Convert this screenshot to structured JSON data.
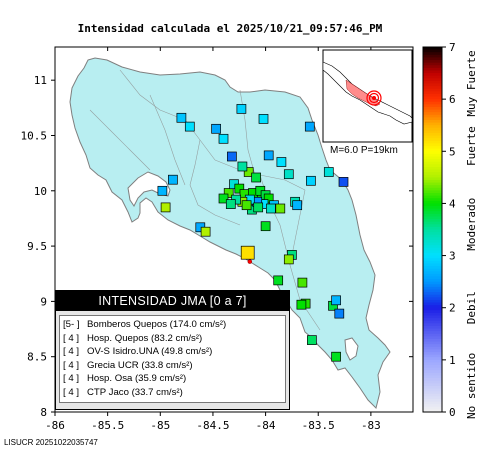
{
  "title": "Intensidad calculada el 2025/10/21_09:57:46_PM",
  "axes": {
    "x_ticks": [
      "-86",
      "-85.5",
      "-85",
      "-84.5",
      "-84",
      "-83.5",
      "-83"
    ],
    "y_ticks": [
      "11",
      "10.5",
      "10",
      "9.5",
      "9",
      "8.5",
      "8"
    ],
    "xlim": [
      -86,
      -82.6
    ],
    "ylim": [
      8,
      11.3
    ]
  },
  "inset": {
    "magnitude_label": "M=6.0 P=19km"
  },
  "colorbar": {
    "ticks": [
      "0",
      "1",
      "2",
      "3",
      "4",
      "5",
      "6",
      "7"
    ],
    "categories": [
      "No sentido",
      "Debil",
      "Moderado",
      "Fuerte",
      "Muy Fuerte"
    ],
    "colors": {
      "0": "#f2f2f2",
      "1": "#9ba6ff",
      "2": "#1a1ee6",
      "3": "#00e0ff",
      "4": "#00e000",
      "5": "#ffff00",
      "6": "#ff4000",
      "7": "#000000"
    }
  },
  "legend": {
    "heading": "INTENSIDAD JMA [0 a 7]",
    "items": [
      {
        "level": "[5- ]",
        "station": "Bomberos Quepos (174.0 cm/s²)"
      },
      {
        "level": "[ 4 ]",
        "station": "Hosp. Quepos (83.2 cm/s²)"
      },
      {
        "level": "[ 4 ]",
        "station": "OV-S Isidro.UNA (49.8 cm/s²)"
      },
      {
        "level": "[ 4 ]",
        "station": "Grecia UCR (33.8 cm/s²)"
      },
      {
        "level": "[ 4 ]",
        "station": "Hosp. Osa (35.9 cm/s²)"
      },
      {
        "level": "[ 4 ]",
        "station": "CTP Jaco (33.7 cm/s²)"
      }
    ]
  },
  "footer": "LISUCR 20251022035747",
  "chart_data": {
    "type": "scatter",
    "title": "Intensidad calculada el 2025/10/21_09:57:46_PM",
    "xlim": [
      -86,
      -82.6
    ],
    "ylim": [
      8,
      11.3
    ],
    "epicenter": {
      "lon": -84.15,
      "lat": 9.36
    },
    "stations": [
      {
        "lon": -84.17,
        "lat": 9.44,
        "intensity": 5.2
      },
      {
        "lon": -84.13,
        "lat": 9.83,
        "intensity": 3.6
      },
      {
        "lon": -84.04,
        "lat": 9.93,
        "intensity": 4.0
      },
      {
        "lon": -84.35,
        "lat": 9.98,
        "intensity": 4.2
      },
      {
        "lon": -84.3,
        "lat": 10.06,
        "intensity": 3.2
      },
      {
        "lon": -84.25,
        "lat": 10.02,
        "intensity": 4.0
      },
      {
        "lon": -84.2,
        "lat": 9.97,
        "intensity": 4.1
      },
      {
        "lon": -84.12,
        "lat": 9.98,
        "intensity": 4.0
      },
      {
        "lon": -84.05,
        "lat": 10.0,
        "intensity": 3.9
      },
      {
        "lon": -84.0,
        "lat": 9.96,
        "intensity": 3.8
      },
      {
        "lon": -83.97,
        "lat": 9.93,
        "intensity": 4.0
      },
      {
        "lon": -84.02,
        "lat": 9.88,
        "intensity": 3.0
      },
      {
        "lon": -84.08,
        "lat": 9.9,
        "intensity": 2.5
      },
      {
        "lon": -84.15,
        "lat": 9.92,
        "intensity": 3.1
      },
      {
        "lon": -84.22,
        "lat": 9.9,
        "intensity": 4.4
      },
      {
        "lon": -84.28,
        "lat": 9.92,
        "intensity": 3.5
      },
      {
        "lon": -84.4,
        "lat": 9.93,
        "intensity": 3.9
      },
      {
        "lon": -83.92,
        "lat": 9.87,
        "intensity": 2.8
      },
      {
        "lon": -83.95,
        "lat": 9.84,
        "intensity": 3.3
      },
      {
        "lon": -84.07,
        "lat": 9.85,
        "intensity": 3.7
      },
      {
        "lon": -84.18,
        "lat": 9.87,
        "intensity": 4.2
      },
      {
        "lon": -84.33,
        "lat": 9.88,
        "intensity": 3.6
      },
      {
        "lon": -83.72,
        "lat": 9.9,
        "intensity": 3.4
      },
      {
        "lon": -83.7,
        "lat": 9.87,
        "intensity": 2.7
      },
      {
        "lon": -83.86,
        "lat": 9.84,
        "intensity": 4.3
      },
      {
        "lon": -84.0,
        "lat": 9.68,
        "intensity": 3.9
      },
      {
        "lon": -83.75,
        "lat": 9.42,
        "intensity": 3.6
      },
      {
        "lon": -83.78,
        "lat": 9.38,
        "intensity": 4.4
      },
      {
        "lon": -83.65,
        "lat": 9.17,
        "intensity": 4.2
      },
      {
        "lon": -83.88,
        "lat": 9.19,
        "intensity": 3.9
      },
      {
        "lon": -83.62,
        "lat": 8.98,
        "intensity": 4.1
      },
      {
        "lon": -83.66,
        "lat": 8.97,
        "intensity": 4.0
      },
      {
        "lon": -83.36,
        "lat": 8.96,
        "intensity": 3.8
      },
      {
        "lon": -83.33,
        "lat": 9.01,
        "intensity": 2.7
      },
      {
        "lon": -83.3,
        "lat": 8.89,
        "intensity": 2.4
      },
      {
        "lon": -83.56,
        "lat": 8.65,
        "intensity": 3.7
      },
      {
        "lon": -83.33,
        "lat": 8.5,
        "intensity": 3.9
      },
      {
        "lon": -84.62,
        "lat": 9.67,
        "intensity": 2.6
      },
      {
        "lon": -84.57,
        "lat": 9.63,
        "intensity": 4.5
      },
      {
        "lon": -84.98,
        "lat": 10.0,
        "intensity": 2.7
      },
      {
        "lon": -84.95,
        "lat": 9.85,
        "intensity": 4.5
      },
      {
        "lon": -84.32,
        "lat": 10.31,
        "intensity": 2.3
      },
      {
        "lon": -84.16,
        "lat": 10.17,
        "intensity": 4.3
      },
      {
        "lon": -84.09,
        "lat": 10.12,
        "intensity": 3.8
      },
      {
        "lon": -83.97,
        "lat": 10.32,
        "intensity": 2.6
      },
      {
        "lon": -83.85,
        "lat": 10.26,
        "intensity": 3.0
      },
      {
        "lon": -83.78,
        "lat": 10.15,
        "intensity": 3.3
      },
      {
        "lon": -83.57,
        "lat": 10.09,
        "intensity": 2.9
      },
      {
        "lon": -83.26,
        "lat": 10.08,
        "intensity": 2.2
      },
      {
        "lon": -84.22,
        "lat": 10.22,
        "intensity": 3.5
      },
      {
        "lon": -84.4,
        "lat": 10.47,
        "intensity": 3.0
      },
      {
        "lon": -84.47,
        "lat": 10.56,
        "intensity": 2.6
      },
      {
        "lon": -84.8,
        "lat": 10.66,
        "intensity": 2.8
      },
      {
        "lon": -84.72,
        "lat": 10.58,
        "intensity": 3.0
      },
      {
        "lon": -84.23,
        "lat": 10.74,
        "intensity": 2.9
      },
      {
        "lon": -84.02,
        "lat": 10.65,
        "intensity": 3.0
      },
      {
        "lon": -83.58,
        "lat": 10.58,
        "intensity": 2.6
      },
      {
        "lon": -83.4,
        "lat": 10.17,
        "intensity": 3.2
      },
      {
        "lon": -84.88,
        "lat": 10.1,
        "intensity": 2.7
      }
    ]
  }
}
